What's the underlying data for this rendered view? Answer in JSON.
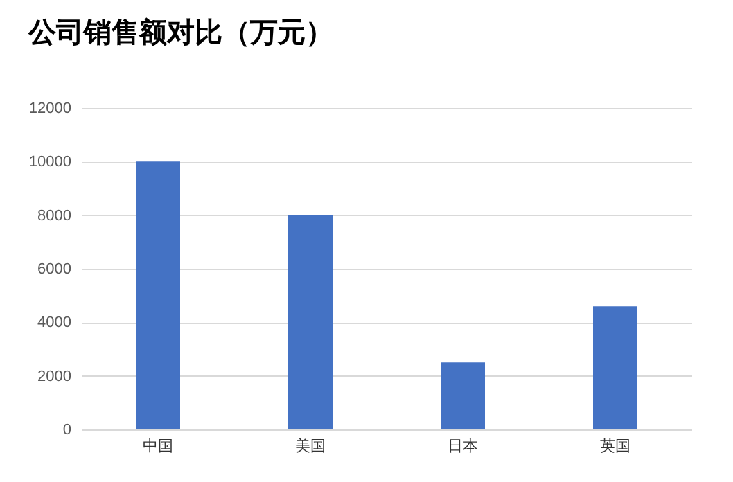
{
  "chart_data": {
    "type": "bar",
    "title": "公司销售额对比（万元）",
    "categories": [
      "中国",
      "美国",
      "日本",
      "英国"
    ],
    "values": [
      10000,
      8000,
      2500,
      4600
    ],
    "color": "#4472c4",
    "ylim": [
      0,
      12000
    ],
    "yticks": [
      0,
      2000,
      4000,
      6000,
      8000,
      10000,
      12000
    ],
    "grid": "y"
  }
}
